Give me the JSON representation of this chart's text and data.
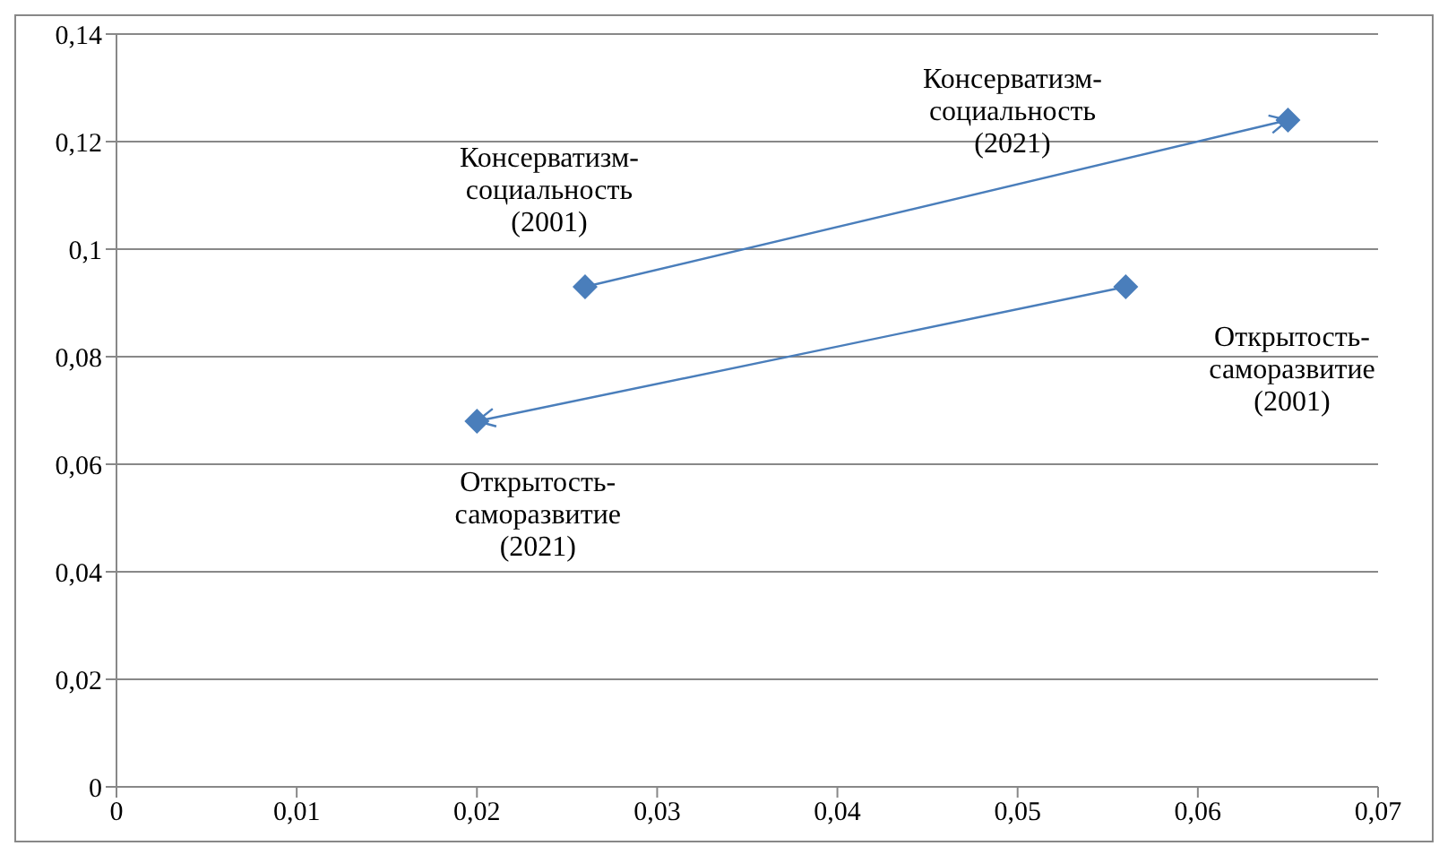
{
  "chart_data": {
    "type": "line",
    "marker": "diamond",
    "line_style": "solid",
    "grid": "y",
    "xlim": [
      0,
      0.07
    ],
    "ylim": [
      0,
      0.14
    ],
    "xticks": [
      0,
      {
        "value": 0.01,
        "label": "0,01"
      },
      {
        "value": 0.02,
        "label": "0,02"
      },
      {
        "value": 0.03,
        "label": "0,03"
      },
      {
        "value": 0.04,
        "label": "0,04"
      },
      {
        "value": 0.05,
        "label": "0,05"
      },
      {
        "value": 0.06,
        "label": "0,06"
      },
      {
        "value": 0.07,
        "label": "0,07"
      }
    ],
    "yticks": [
      0,
      {
        "value": 0.02,
        "label": "0,02"
      },
      {
        "value": 0.04,
        "label": "0,04"
      },
      {
        "value": 0.06,
        "label": "0,06"
      },
      {
        "value": 0.08,
        "label": "0,08"
      },
      {
        "value": 0.1,
        "label": "0,1"
      },
      {
        "value": 0.12,
        "label": "0,12"
      },
      {
        "value": 0.14,
        "label": "0,14"
      }
    ],
    "series": [
      {
        "color": "#4a7ebb",
        "x": [
          0.026,
          0.065
        ],
        "values": [
          0.093,
          0.124
        ]
      },
      {
        "color": "#4a7ebb",
        "x": [
          0.056,
          0.02
        ],
        "values": [
          0.093,
          0.068
        ]
      }
    ],
    "annotations": [
      {
        "text": "Консерватизм-\nсоциальность\n(2001)",
        "x": 0.026,
        "y": 0.093
      },
      "Консерватизм-\nсоциальность\n(2021)",
      "Открытость-\nсаморазвитие\n(2001)",
      {
        "text": "Открытость-\nсаморазвитие\n(2021)",
        "x": 0.02,
        "y": 0.068
      }
    ]
  }
}
